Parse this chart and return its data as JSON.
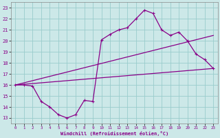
{
  "xlabel": "Windchill (Refroidissement éolien,°C)",
  "xlim": [
    -0.5,
    23.5
  ],
  "ylim": [
    12.5,
    23.5
  ],
  "xticks": [
    0,
    1,
    2,
    3,
    4,
    5,
    6,
    7,
    8,
    9,
    10,
    11,
    12,
    13,
    14,
    15,
    16,
    17,
    18,
    19,
    20,
    21,
    22,
    23
  ],
  "yticks": [
    13,
    14,
    15,
    16,
    17,
    18,
    19,
    20,
    21,
    22,
    23
  ],
  "bg_color": "#cce8e8",
  "grid_color": "#99cccc",
  "line_color": "#880088",
  "curve1_x": [
    0,
    1,
    2,
    3,
    4,
    5,
    6,
    7,
    8,
    9,
    10,
    11,
    12,
    13,
    14,
    15,
    16,
    17,
    18,
    19,
    20,
    21,
    22,
    23
  ],
  "curve1_y": [
    16,
    16,
    15.9,
    14.5,
    14,
    13.3,
    13,
    13.3,
    14.6,
    14.5,
    20.1,
    20.6,
    21,
    21.2,
    22,
    22.8,
    22.5,
    21,
    20.5,
    20.8,
    20,
    18.8,
    18.3,
    17.5
  ],
  "curve2_x": [
    0,
    23
  ],
  "curve2_y": [
    16.0,
    20.5
  ],
  "curve3_x": [
    0,
    23
  ],
  "curve3_y": [
    16.0,
    17.5
  ],
  "marker_size": 3,
  "lw": 0.9
}
